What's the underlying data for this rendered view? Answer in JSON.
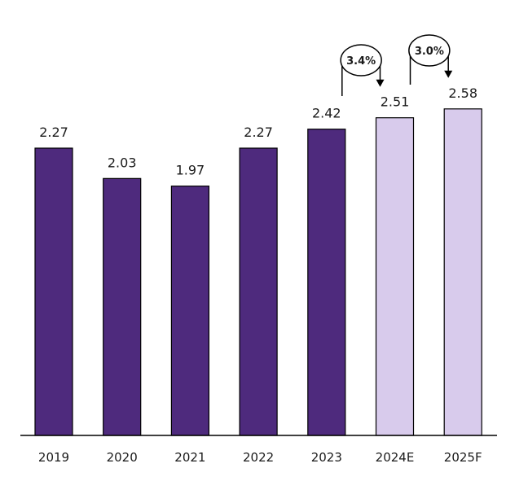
{
  "chart_data": {
    "type": "bar",
    "title": "",
    "xlabel": "",
    "ylabel": "",
    "categories": [
      "2019",
      "2020",
      "2021",
      "2022",
      "2023",
      "2024E",
      "2025F"
    ],
    "values": [
      2.27,
      2.03,
      1.97,
      2.27,
      2.42,
      2.51,
      2.58
    ],
    "value_labels": [
      "2.27",
      "2.03",
      "1.97",
      "2.27",
      "2.42",
      "2.51",
      "2.58"
    ],
    "estimated": [
      false,
      false,
      false,
      false,
      false,
      true,
      true
    ],
    "ylim": [
      0,
      2.6
    ],
    "grid": false,
    "legend": "none",
    "colors": {
      "actual": "#4e2a7d",
      "estimate": "#d8cbec",
      "outline": "#000000"
    },
    "annotations": [
      {
        "text": "3.4%",
        "from": "2023",
        "to": "2024E"
      },
      {
        "text": "3.0%",
        "from": "2024E",
        "to": "2025F"
      }
    ]
  }
}
